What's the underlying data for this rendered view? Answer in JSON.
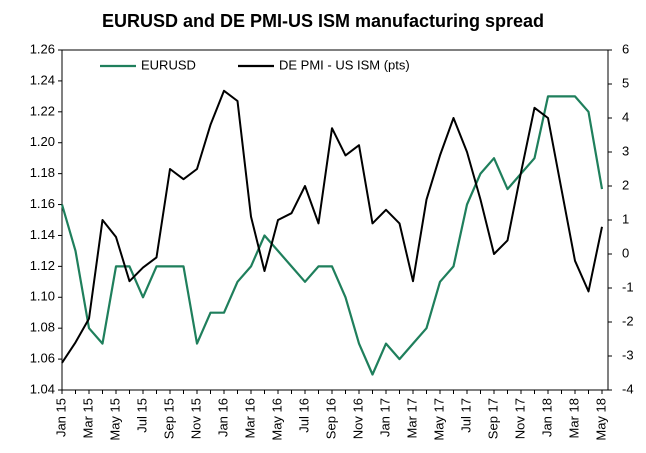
{
  "chart_data": {
    "type": "line",
    "title": "EURUSD and DE PMI-US ISM manufacturing spread",
    "categories": [
      "Jan 15",
      null,
      "Mar 15",
      null,
      "May 15",
      null,
      "Jul 15",
      null,
      "Sep 15",
      null,
      "Nov 15",
      null,
      "Jan 16",
      null,
      "Mar 16",
      null,
      "May 16",
      null,
      "Jul 16",
      null,
      "Sep 16",
      null,
      "Nov 16",
      null,
      "Jan 17",
      null,
      "Mar 17",
      null,
      "May 17",
      null,
      "Jul 17",
      null,
      "Sep 17",
      null,
      "Nov 17",
      null,
      "Jan 18",
      null,
      "Mar 18",
      null,
      "May 18"
    ],
    "series": [
      {
        "name": "EURUSD",
        "color": "#1f7f5c",
        "values": [
          1.16,
          1.13,
          1.08,
          1.07,
          1.12,
          1.12,
          1.1,
          1.12,
          1.12,
          1.12,
          1.07,
          1.09,
          1.09,
          1.11,
          1.12,
          1.14,
          1.13,
          1.12,
          1.11,
          1.12,
          1.12,
          1.1,
          1.07,
          1.05,
          1.07,
          1.06,
          1.07,
          1.08,
          1.11,
          1.12,
          1.16,
          1.18,
          1.19,
          1.17,
          1.18,
          1.19,
          1.23,
          1.23,
          1.23,
          1.22,
          1.17
        ]
      },
      {
        "name": "DE PMI - US ISM (pts)",
        "color": "#000000",
        "axis": "y2",
        "values": [
          -3.2,
          -2.6,
          -1.9,
          1.0,
          0.5,
          -0.8,
          -0.4,
          -0.1,
          2.5,
          2.2,
          2.5,
          3.8,
          4.8,
          4.5,
          1.1,
          -0.5,
          1.0,
          1.2,
          2.0,
          0.9,
          3.7,
          2.9,
          3.2,
          0.9,
          1.3,
          0.9,
          -0.8,
          1.6,
          2.9,
          4.0,
          3.0,
          1.6,
          0.0,
          0.4,
          2.4,
          4.3,
          4.0,
          1.9,
          -0.2,
          -1.1,
          0.8
        ]
      }
    ],
    "ylim": [
      1.04,
      1.26
    ],
    "yticks": [
      1.04,
      1.06,
      1.08,
      {
        "value": 1.1,
        "label": "1.10"
      },
      1.12,
      1.14,
      1.16,
      1.18,
      {
        "value": 1.2,
        "label": "1.20"
      },
      1.22,
      1.24,
      1.26
    ],
    "y2lim": [
      -4,
      6
    ],
    "y2ticks": [
      -4,
      -3,
      -2,
      -1,
      0,
      1,
      2,
      3,
      4,
      5,
      6
    ],
    "legend": "top"
  }
}
